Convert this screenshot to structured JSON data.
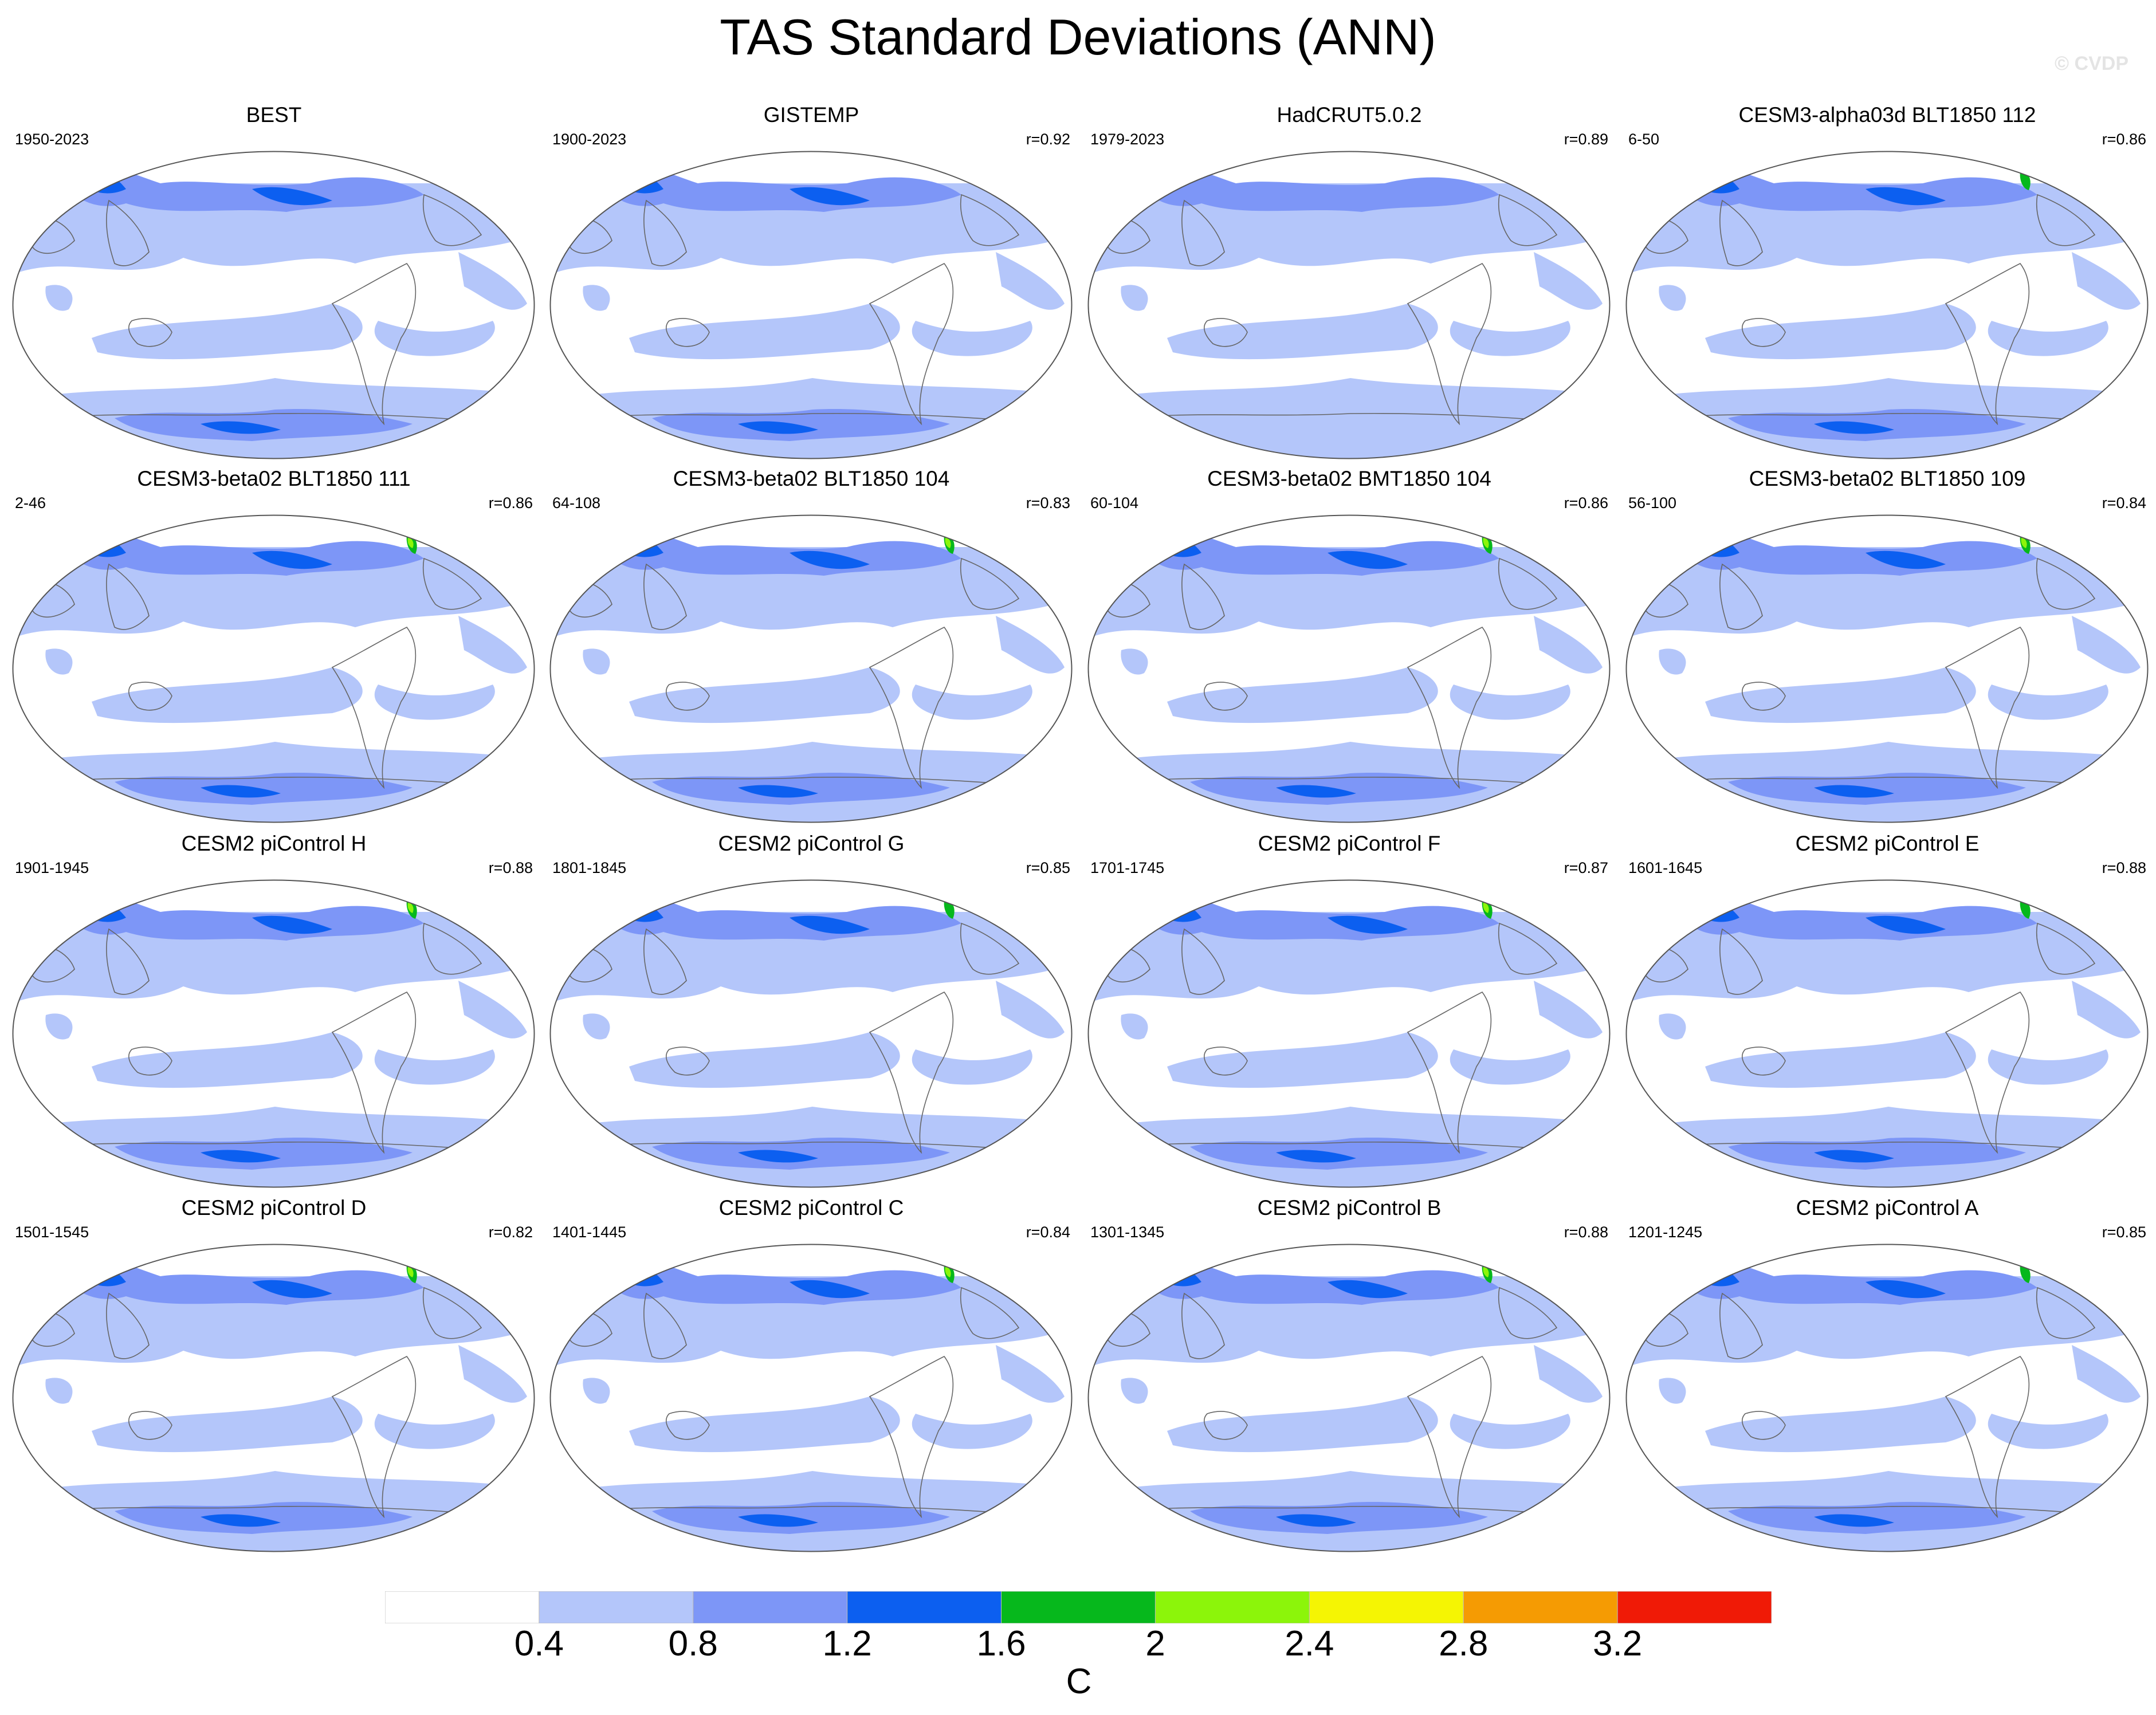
{
  "title": "TAS Standard Deviations (ANN)",
  "watermark": "© CVDP",
  "colors": {
    "levels": [
      "#ffffff",
      "#b4c6fa",
      "#7d96f7",
      "#0c5ff0",
      "#06b81c",
      "#8cf50a",
      "#f5f503",
      "#f59b03",
      "#f01a06"
    ],
    "land_outline": "#666666"
  },
  "panels": [
    {
      "title": "BEST",
      "years": "1950-2023",
      "corr": "",
      "intensity": 1
    },
    {
      "title": "GISTEMP",
      "years": "1900-2023",
      "corr": "r=0.92",
      "intensity": 1
    },
    {
      "title": "HadCRUT5.0.2",
      "years": "1979-2023",
      "corr": "r=0.89",
      "intensity": 0
    },
    {
      "title": "CESM3-alpha03d BLT1850 112",
      "years": "6-50",
      "corr": "r=0.86",
      "intensity": 2
    },
    {
      "title": "CESM3-beta02 BLT1850 111",
      "years": "2-46",
      "corr": "r=0.86",
      "intensity": 3
    },
    {
      "title": "CESM3-beta02 BLT1850 104",
      "years": "64-108",
      "corr": "r=0.83",
      "intensity": 3
    },
    {
      "title": "CESM3-beta02 BMT1850 104",
      "years": "60-104",
      "corr": "r=0.86",
      "intensity": 3
    },
    {
      "title": "CESM3-beta02 BLT1850 109",
      "years": "56-100",
      "corr": "r=0.84",
      "intensity": 3
    },
    {
      "title": "CESM2 piControl H",
      "years": "1901-1945",
      "corr": "r=0.88",
      "intensity": 3
    },
    {
      "title": "CESM2 piControl G",
      "years": "1801-1845",
      "corr": "r=0.85",
      "intensity": 2
    },
    {
      "title": "CESM2 piControl F",
      "years": "1701-1745",
      "corr": "r=0.87",
      "intensity": 3
    },
    {
      "title": "CESM2 piControl E",
      "years": "1601-1645",
      "corr": "r=0.88",
      "intensity": 2
    },
    {
      "title": "CESM2 piControl D",
      "years": "1501-1545",
      "corr": "r=0.82",
      "intensity": 3
    },
    {
      "title": "CESM2 piControl C",
      "years": "1401-1445",
      "corr": "r=0.84",
      "intensity": 4
    },
    {
      "title": "CESM2 piControl B",
      "years": "1301-1345",
      "corr": "r=0.88",
      "intensity": 3
    },
    {
      "title": "CESM2 piControl A",
      "years": "1201-1245",
      "corr": "r=0.85",
      "intensity": 2
    }
  ],
  "colorbar": {
    "ticks": [
      "0.4",
      "0.8",
      "1.2",
      "1.6",
      "2",
      "2.4",
      "2.8",
      "3.2"
    ],
    "units": "C"
  }
}
